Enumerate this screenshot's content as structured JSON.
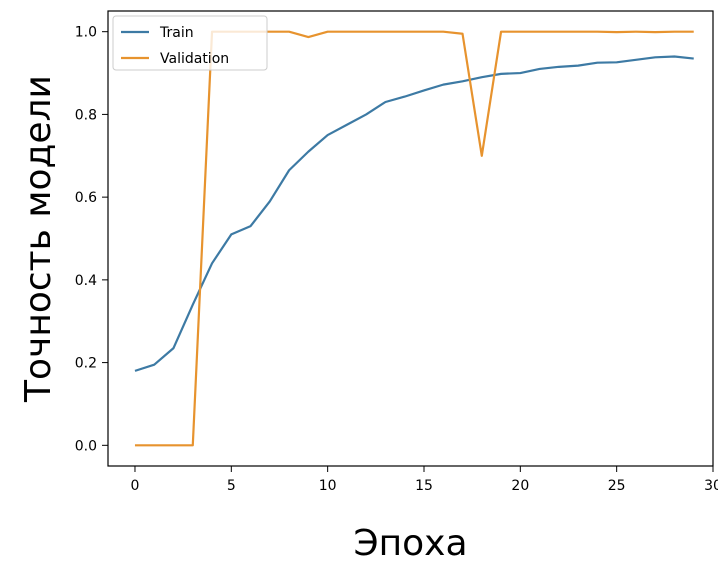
{
  "chart_data": {
    "type": "line",
    "title": "",
    "xlabel": "Эпоха",
    "ylabel": "Точность модели",
    "xlim": [
      -1.4,
      30
    ],
    "ylim": [
      -0.05,
      1.05
    ],
    "xticks": [
      0,
      5,
      10,
      15,
      20,
      25,
      30
    ],
    "yticks": [
      0.0,
      0.2,
      0.4,
      0.6,
      0.8,
      1.0
    ],
    "xtick_labels": [
      "0",
      "5",
      "10",
      "15",
      "20",
      "25",
      "30"
    ],
    "ytick_labels": [
      "0.0",
      "0.2",
      "0.4",
      "0.6",
      "0.8",
      "1.0"
    ],
    "grid": false,
    "legend_position": "top-left",
    "x": [
      0,
      1,
      2,
      3,
      4,
      5,
      6,
      7,
      8,
      9,
      10,
      11,
      12,
      13,
      14,
      15,
      16,
      17,
      18,
      19,
      20,
      21,
      22,
      23,
      24,
      25,
      26,
      27,
      28,
      29
    ],
    "series": [
      {
        "name": "Train",
        "color": "#3d7aa4",
        "values": [
          0.18,
          0.195,
          0.235,
          0.34,
          0.44,
          0.51,
          0.53,
          0.59,
          0.665,
          0.71,
          0.75,
          0.775,
          0.8,
          0.83,
          0.843,
          0.858,
          0.872,
          0.88,
          0.89,
          0.898,
          0.9,
          0.91,
          0.915,
          0.918,
          0.925,
          0.926,
          0.932,
          0.938,
          0.94,
          0.935
        ]
      },
      {
        "name": "Validation",
        "color": "#e7932e",
        "values": [
          0.0,
          0.0,
          0.0,
          0.0,
          1.0,
          1.0,
          1.0,
          1.0,
          1.0,
          0.987,
          1.0,
          1.0,
          1.0,
          1.0,
          1.0,
          1.0,
          1.0,
          0.995,
          0.7,
          1.0,
          1.0,
          1.0,
          1.0,
          1.0,
          1.0,
          0.999,
          1.0,
          0.999,
          1.0,
          1.0
        ]
      }
    ]
  }
}
